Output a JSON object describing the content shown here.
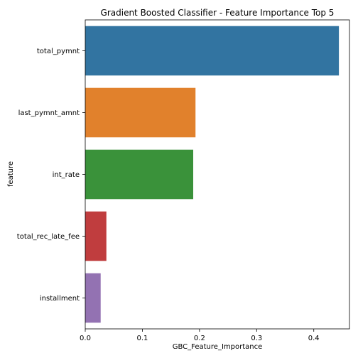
{
  "chart_data": {
    "type": "bar",
    "orientation": "horizontal",
    "title": "Gradient Boosted Classifier - Feature Importance Top 5",
    "xlabel": "GBC_Feature_Importance",
    "ylabel": "feature",
    "categories": [
      "total_pymnt",
      "last_pymnt_amnt",
      "int_rate",
      "total_rec_late_fee",
      "installment"
    ],
    "values": [
      0.444,
      0.193,
      0.189,
      0.037,
      0.027
    ],
    "colors": [
      "#3274a1",
      "#e1812c",
      "#3a923a",
      "#c03d3e",
      "#9372b2"
    ],
    "xlim": [
      0,
      0.4625
    ],
    "xticks": [
      0.0,
      0.1,
      0.2,
      0.3,
      0.4
    ],
    "xtick_labels": [
      "0.0",
      "0.1",
      "0.2",
      "0.3",
      "0.4"
    ],
    "grid": false,
    "legend": "none"
  }
}
